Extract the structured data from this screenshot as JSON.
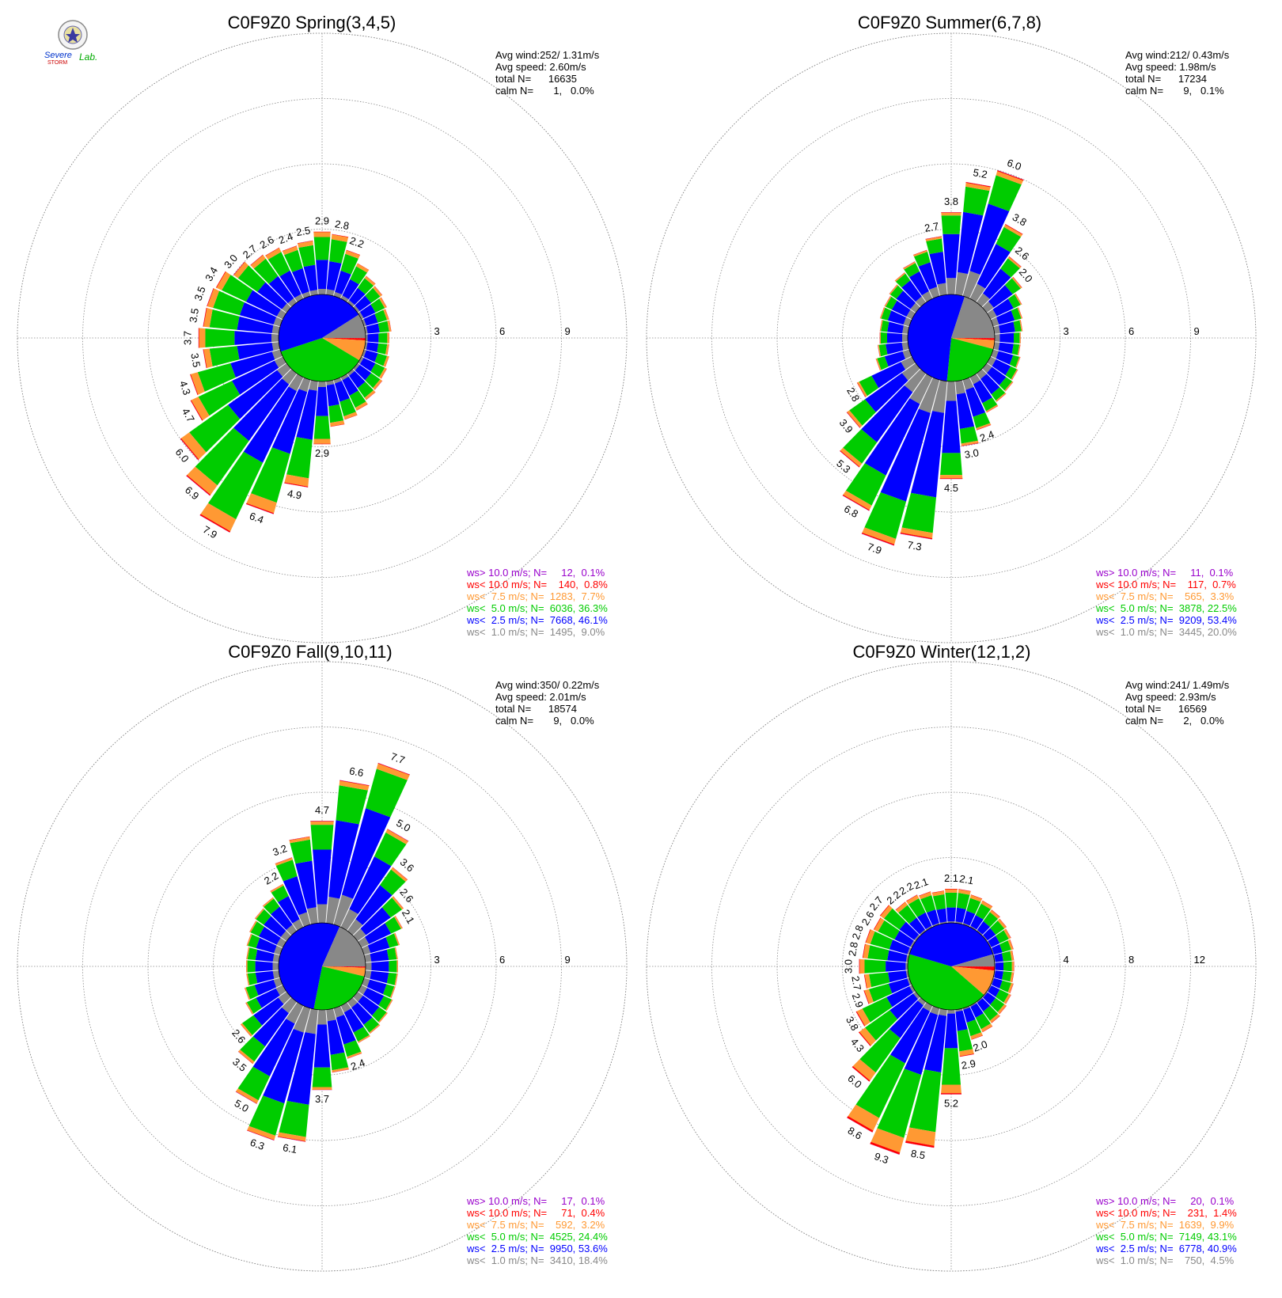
{
  "logo": {
    "text_line1": "Severe",
    "text_line2": "Storm",
    "text_line3": "Lab."
  },
  "colors": {
    "ws_gt10": "#9900cc",
    "ws_lt10": "#ff0000",
    "ws_lt7_5": "#ff9933",
    "ws_lt5": "#00cc00",
    "ws_lt2_5": "#0000ff",
    "ws_lt1": "#888888",
    "grid": "#888888"
  },
  "chart_data": [
    {
      "type": "polar-bar",
      "title": "C0F9Z0 Spring(3,4,5)",
      "ring_ticks": [
        3,
        6,
        9
      ],
      "rmax": 9,
      "stats": [
        "Avg wind:252/ 1.31m/s",
        "Avg speed: 2.60m/s",
        "total N=      16635",
        "calm N=       1,   0.0%"
      ],
      "legend": [
        "ws> 10.0 m/s; N=     12,  0.1%",
        "ws< 10.0 m/s; N=    140,  0.8%",
        "ws<  7.5 m/s; N=  1283,  7.7%",
        "ws<  5.0 m/s; N=  6036, 36.3%",
        "ws<  2.5 m/s; N=  7668, 46.1%",
        "ws<  1.0 m/s; N=  1495,  9.0%"
      ],
      "directions_deg": [
        0,
        10,
        20,
        30,
        40,
        50,
        60,
        70,
        80,
        90,
        100,
        110,
        120,
        130,
        140,
        150,
        160,
        170,
        180,
        190,
        200,
        210,
        220,
        230,
        240,
        250,
        260,
        270,
        280,
        290,
        300,
        310,
        320,
        330,
        340,
        350
      ],
      "totals": [
        2.9,
        2.8,
        2.2,
        1.8,
        1.5,
        1.4,
        1.3,
        1.2,
        1.2,
        1.1,
        1.1,
        1.2,
        1.3,
        1.4,
        1.5,
        1.7,
        1.9,
        2.1,
        2.9,
        4.9,
        6.4,
        7.9,
        6.9,
        6.0,
        4.7,
        4.3,
        3.5,
        3.7,
        3.5,
        3.5,
        3.4,
        3.0,
        2.7,
        2.6,
        2.4,
        2.5
      ],
      "labeled": [
        2.9,
        2.8,
        2.2,
        null,
        null,
        null,
        null,
        null,
        null,
        null,
        null,
        null,
        null,
        null,
        null,
        null,
        null,
        null,
        2.9,
        4.9,
        6.4,
        7.9,
        6.9,
        6.0,
        4.7,
        4.3,
        3.5,
        3.7,
        3.5,
        3.5,
        3.4,
        3.0,
        2.7,
        2.6,
        2.4,
        2.5
      ],
      "pie": [
        0.1,
        0.8,
        7.7,
        36.3,
        46.1,
        9.0
      ]
    },
    {
      "type": "polar-bar",
      "title": "C0F9Z0 Summer(6,7,8)",
      "ring_ticks": [
        3,
        6,
        9
      ],
      "rmax": 9,
      "stats": [
        "Avg wind:212/ 0.43m/s",
        "Avg speed: 1.98m/s",
        "total N=      17234",
        "calm N=       9,   0.1%"
      ],
      "legend": [
        "ws> 10.0 m/s; N=     11,  0.1%",
        "ws< 10.0 m/s; N=    117,  0.7%",
        "ws<  7.5 m/s; N=    565,  3.3%",
        "ws<  5.0 m/s; N=  3878, 22.5%",
        "ws<  2.5 m/s; N=  9209, 53.4%",
        "ws<  1.0 m/s; N=  3445, 20.0%"
      ],
      "directions_deg": [
        0,
        10,
        20,
        30,
        40,
        50,
        60,
        70,
        80,
        90,
        100,
        110,
        120,
        130,
        140,
        150,
        160,
        170,
        180,
        190,
        200,
        210,
        220,
        230,
        240,
        250,
        260,
        270,
        280,
        290,
        300,
        310,
        320,
        330,
        340,
        350
      ],
      "totals": [
        3.8,
        5.2,
        6.0,
        3.8,
        2.6,
        2.0,
        1.6,
        1.4,
        1.3,
        1.2,
        1.2,
        1.3,
        1.4,
        1.5,
        1.6,
        1.8,
        2.4,
        3.0,
        4.5,
        7.3,
        7.9,
        6.8,
        5.3,
        3.9,
        2.8,
        1.6,
        1.4,
        1.3,
        1.3,
        1.4,
        1.4,
        1.5,
        1.7,
        1.9,
        2.2,
        2.7
      ],
      "labeled": [
        3.8,
        5.2,
        6.0,
        3.8,
        2.6,
        2.0,
        null,
        null,
        null,
        null,
        null,
        null,
        null,
        null,
        null,
        null,
        2.4,
        3.0,
        4.5,
        7.3,
        7.9,
        6.8,
        5.3,
        3.9,
        2.8,
        null,
        null,
        null,
        null,
        null,
        null,
        null,
        null,
        null,
        null,
        2.7
      ],
      "pie": [
        0.1,
        0.7,
        3.3,
        22.5,
        53.4,
        20.0
      ]
    },
    {
      "type": "polar-bar",
      "title": "C0F9Z0 Fall(9,10,11)",
      "ring_ticks": [
        3,
        6,
        9
      ],
      "rmax": 9,
      "stats": [
        "Avg wind:350/ 0.22m/s",
        "Avg speed: 2.01m/s",
        "total N=      18574",
        "calm N=       9,   0.0%"
      ],
      "legend": [
        "ws> 10.0 m/s; N=     17,  0.1%",
        "ws< 10.0 m/s; N=     71,  0.4%",
        "ws<  7.5 m/s; N=    592,  3.2%",
        "ws<  5.0 m/s; N=  4525, 24.4%",
        "ws<  2.5 m/s; N=  9950, 53.6%",
        "ws<  1.0 m/s; N=  3410, 18.4%"
      ],
      "directions_deg": [
        0,
        10,
        20,
        30,
        40,
        50,
        60,
        70,
        80,
        90,
        100,
        110,
        120,
        130,
        140,
        150,
        160,
        170,
        180,
        190,
        200,
        210,
        220,
        230,
        240,
        250,
        260,
        270,
        280,
        290,
        300,
        310,
        320,
        330,
        340,
        350
      ],
      "totals": [
        4.7,
        6.6,
        7.7,
        5.0,
        3.6,
        2.6,
        2.1,
        1.7,
        1.5,
        1.5,
        1.5,
        1.5,
        1.6,
        1.7,
        1.8,
        1.9,
        2.4,
        2.9,
        3.7,
        6.1,
        6.3,
        5.0,
        3.5,
        2.6,
        1.9,
        1.7,
        1.5,
        1.5,
        1.5,
        1.6,
        1.7,
        1.8,
        1.9,
        2.2,
        3.2,
        4.0
      ],
      "labeled": [
        4.7,
        6.6,
        7.7,
        5.0,
        3.6,
        2.6,
        2.1,
        null,
        null,
        null,
        null,
        null,
        null,
        null,
        null,
        null,
        2.4,
        null,
        3.7,
        6.1,
        6.3,
        5.0,
        3.5,
        2.6,
        null,
        null,
        null,
        null,
        null,
        null,
        null,
        null,
        null,
        2.2,
        3.2,
        null
      ],
      "pie": [
        0.1,
        0.4,
        3.2,
        24.4,
        53.6,
        18.4
      ]
    },
    {
      "type": "polar-bar",
      "title": "C0F9Z0 Winter(12,1,2)",
      "ring_ticks": [
        4,
        8,
        12
      ],
      "rmax": 12,
      "stats": [
        "Avg wind:241/ 1.49m/s",
        "Avg speed: 2.93m/s",
        "total N=      16569",
        "calm N=       2,   0.0%"
      ],
      "legend": [
        "ws> 10.0 m/s; N=     20,  0.1%",
        "ws< 10.0 m/s; N=    231,  1.4%",
        "ws<  7.5 m/s; N=  1639,  9.9%",
        "ws<  5.0 m/s; N=  7149, 43.1%",
        "ws<  2.5 m/s; N=  6778, 40.9%",
        "ws<  1.0 m/s; N=    750,  4.5%"
      ],
      "directions_deg": [
        0,
        10,
        20,
        30,
        40,
        50,
        60,
        70,
        80,
        90,
        100,
        110,
        120,
        130,
        140,
        150,
        160,
        170,
        180,
        190,
        200,
        210,
        220,
        230,
        240,
        250,
        260,
        270,
        280,
        290,
        300,
        310,
        320,
        330,
        340,
        350
      ],
      "totals": [
        2.1,
        2.1,
        1.9,
        1.8,
        1.6,
        1.5,
        1.4,
        1.3,
        1.2,
        1.2,
        1.2,
        1.3,
        1.4,
        1.5,
        1.6,
        1.8,
        2.0,
        2.9,
        5.2,
        8.5,
        9.3,
        8.6,
        6.0,
        4.3,
        3.8,
        2.9,
        2.7,
        3.0,
        2.8,
        2.8,
        2.6,
        2.7,
        2.2,
        2.2,
        2.1,
        2.0
      ],
      "labeled": [
        2.1,
        2.1,
        null,
        null,
        null,
        null,
        null,
        null,
        null,
        null,
        null,
        null,
        null,
        null,
        null,
        null,
        2.0,
        2.9,
        5.2,
        8.5,
        9.3,
        8.6,
        6.0,
        4.3,
        3.8,
        2.9,
        2.7,
        3.0,
        2.8,
        2.8,
        2.6,
        2.7,
        2.2,
        2.2,
        2.1,
        null
      ],
      "pie": [
        0.1,
        1.4,
        9.9,
        43.1,
        40.9,
        4.5
      ]
    }
  ]
}
